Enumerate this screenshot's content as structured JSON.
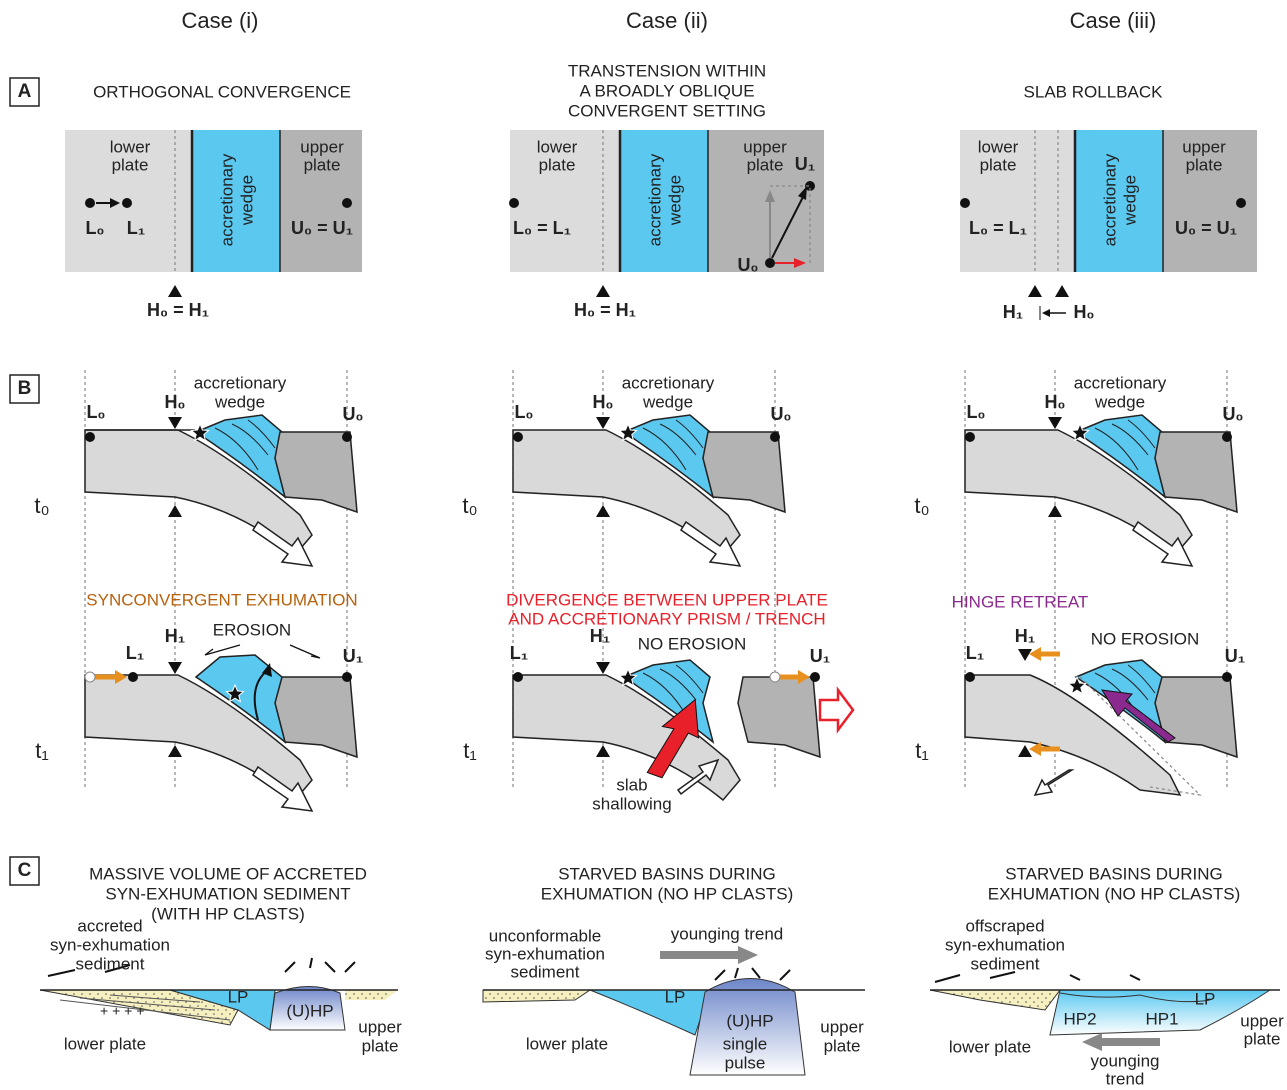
{
  "column_headers": [
    "Case (i)",
    "Case (ii)",
    "Case (iii)"
  ],
  "row_labels": [
    "A",
    "B",
    "C"
  ],
  "panel_a": [
    {
      "title": [
        "ORTHOGONAL CONVERGENCE"
      ],
      "lower_plate": [
        "lower",
        "plate"
      ],
      "wedge": [
        "accretionary",
        "wedge"
      ],
      "upper_plate": [
        "upper",
        "plate"
      ],
      "points": [
        "L₀",
        "L₁",
        "U₀ = U₁"
      ],
      "hinge": [
        "H₀ = H₁"
      ]
    },
    {
      "title": [
        "TRANSTENSION WITHIN",
        "A BROADLY OBLIQUE",
        "CONVERGENT SETTING"
      ],
      "lower_plate": [
        "lower",
        "plate"
      ],
      "wedge": [
        "accretionary",
        "wedge"
      ],
      "upper_plate": [
        "upper",
        "plate"
      ],
      "points": [
        "L₀ = L₁",
        "U₁",
        "U₀"
      ],
      "hinge": [
        "H₀ = H₁"
      ]
    },
    {
      "title": [
        "SLAB ROLLBACK"
      ],
      "lower_plate": [
        "lower",
        "plate"
      ],
      "wedge": [
        "accretionary",
        "wedge"
      ],
      "upper_plate": [
        "upper",
        "plate"
      ],
      "points": [
        "L₀ = L₁",
        "U₀ = U₁"
      ],
      "hinge": [
        "H₁",
        "H₀"
      ]
    }
  ],
  "panel_b": [
    {
      "t0": {
        "wedge": [
          "accretionary",
          "wedge"
        ],
        "points": [
          "L₀",
          "H₀",
          "U₀"
        ],
        "time": "t₀"
      },
      "t1": {
        "title": [
          "SYNCONVERGENT EXHUMATION"
        ],
        "notes": [
          "EROSION"
        ],
        "points": [
          "L₁",
          "H₁",
          "U₁"
        ],
        "time": "t₁"
      }
    },
    {
      "t0": {
        "wedge": [
          "accretionary",
          "wedge"
        ],
        "points": [
          "L₀",
          "H₀",
          "U₀"
        ],
        "time": "t₀"
      },
      "t1": {
        "title": [
          "DIVERGENCE BETWEEN UPPER PLATE",
          "AND ACCRETIONARY PRISM / TRENCH"
        ],
        "notes": [
          "NO EROSION",
          "slab",
          "shallowing"
        ],
        "points": [
          "L₁",
          "H₁",
          "U₁"
        ],
        "time": "t₁"
      }
    },
    {
      "t0": {
        "wedge": [
          "accretionary",
          "wedge"
        ],
        "points": [
          "L₀",
          "H₀",
          "U₀"
        ],
        "time": "t₀"
      },
      "t1": {
        "title": [
          "HINGE RETREAT"
        ],
        "notes": [
          "NO EROSION"
        ],
        "points": [
          "L₁",
          "H₁",
          "U₁"
        ],
        "time": "t₁"
      }
    }
  ],
  "panel_c": [
    {
      "title": [
        "MASSIVE VOLUME OF ACCRETED",
        "SYN-EXHUMATION SEDIMENT",
        "(WITH HP CLASTS)"
      ],
      "sediment": [
        "accreted",
        "syn-exhumation",
        "sediment"
      ],
      "units": [
        "LP",
        "(U)HP"
      ],
      "upper_plate": [
        "upper",
        "plate"
      ],
      "lower_plate": [
        "lower plate"
      ]
    },
    {
      "title": [
        "STARVED BASINS DURING",
        "EXHUMATION (NO HP CLASTS)"
      ],
      "sediment": [
        "unconformable",
        "syn-exhumation",
        "sediment"
      ],
      "units": [
        "LP",
        "(U)HP",
        "single",
        "pulse"
      ],
      "trend": [
        "younging trend"
      ],
      "upper_plate": [
        "upper",
        "plate"
      ],
      "lower_plate": [
        "lower plate"
      ]
    },
    {
      "title": [
        "STARVED BASINS DURING",
        "EXHUMATION (NO HP CLASTS)"
      ],
      "sediment": [
        "offscraped",
        "syn-exhumation",
        "sediment"
      ],
      "units": [
        "HP2",
        "HP1",
        "LP"
      ],
      "trend": [
        "younging",
        "trend"
      ],
      "upper_plate": [
        "upper",
        "plate"
      ],
      "lower_plate": [
        "lower plate"
      ]
    }
  ]
}
